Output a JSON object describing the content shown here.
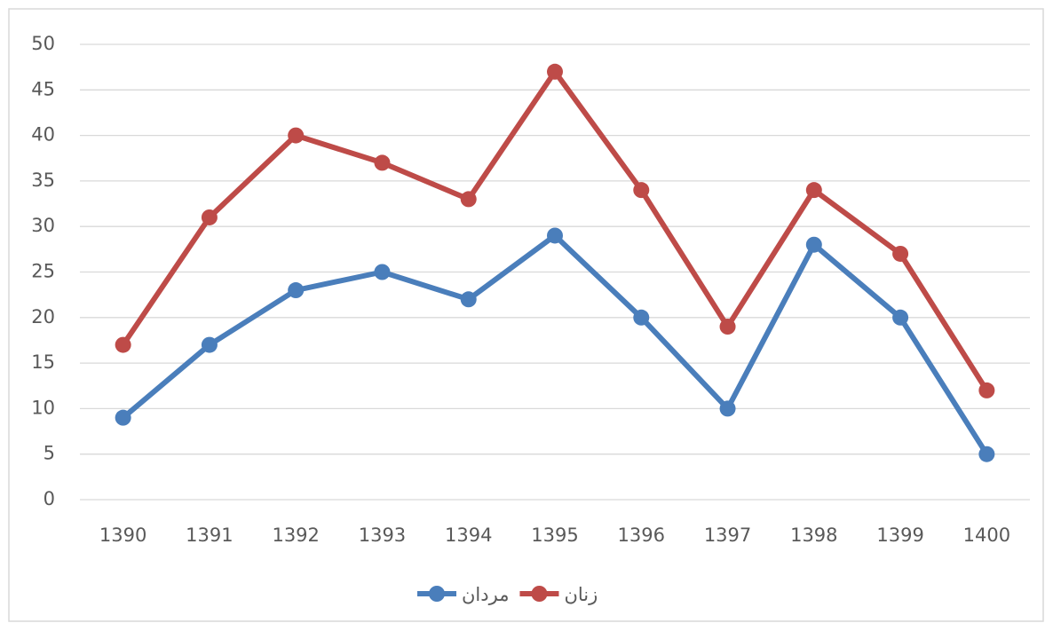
{
  "chart_data": {
    "type": "line",
    "categories": [
      "1390",
      "1391",
      "1392",
      "1393",
      "1394",
      "1395",
      "1396",
      "1397",
      "1398",
      "1399",
      "1400"
    ],
    "series": [
      {
        "name": "مردان",
        "color": "#4a7ebb",
        "values": [
          9,
          17,
          23,
          25,
          22,
          29,
          20,
          10,
          28,
          20,
          5
        ]
      },
      {
        "name": "زنان",
        "color": "#be4b48",
        "values": [
          17,
          31,
          40,
          37,
          33,
          47,
          34,
          19,
          34,
          27,
          12
        ]
      }
    ],
    "ylim": [
      0,
      50
    ],
    "yticks": [
      0,
      5,
      10,
      15,
      20,
      25,
      30,
      35,
      40,
      45,
      50
    ],
    "grid": true,
    "legend": "bottom"
  }
}
